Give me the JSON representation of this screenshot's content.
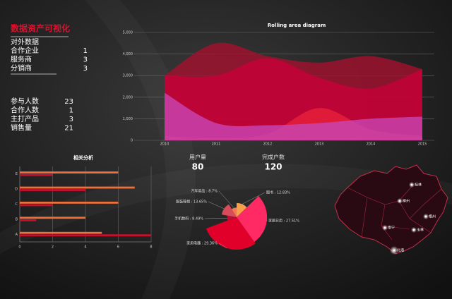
{
  "header": {
    "title": "数据资产可视化",
    "subtitle": "对外数据"
  },
  "stats_partners": [
    {
      "label": "合作企业",
      "value": 1
    },
    {
      "label": "服务商",
      "value": 3
    },
    {
      "label": "分销商",
      "value": 3
    }
  ],
  "stats_people": [
    {
      "label": "参与人数",
      "value": 23
    },
    {
      "label": "合作人数",
      "value": 1
    },
    {
      "label": "主打产品",
      "value": 3
    },
    {
      "label": "销售量",
      "value": 21
    }
  ],
  "kpis": [
    {
      "label": "用户量",
      "value": 80
    },
    {
      "label": "完成户数",
      "value": 120
    }
  ],
  "chart_data": [
    {
      "type": "area",
      "title": "Rolling area diagram",
      "x": [
        2010,
        2011,
        2012,
        2013,
        2014,
        2015
      ],
      "xlim": [
        2010,
        2015
      ],
      "xticks": [
        2010,
        2011,
        2012,
        2013,
        2014,
        2015
      ],
      "ylim": [
        0,
        5000
      ],
      "yticks": [
        0,
        {
          "value": 1000,
          "label": "1,000"
        },
        {
          "value": 2000,
          "label": "2,000"
        },
        {
          "value": 3000,
          "label": "3,000"
        },
        {
          "value": 4000,
          "label": "4,000"
        },
        {
          "value": 5000,
          "label": "5,000"
        }
      ],
      "grid": true,
      "series": [
        {
          "color": "#a3102e",
          "values": [
            3000,
            4500,
            3900,
            3600,
            3900,
            3300
          ]
        },
        {
          "color": "#c8003a",
          "values": [
            3000,
            3000,
            3800,
            2900,
            2400,
            3300
          ]
        },
        {
          "color": "#e8203a",
          "values": [
            200,
            100,
            300,
            1500,
            500,
            200
          ]
        },
        {
          "color": "#c846b4",
          "values": [
            2200,
            800,
            700,
            800,
            1000,
            1100
          ]
        }
      ]
    },
    {
      "type": "hbar",
      "title": "相关分析",
      "categories": [
        "A",
        "B",
        "C",
        "D",
        "E"
      ],
      "xlim": [
        0,
        8
      ],
      "xticks": [
        0,
        2,
        4,
        6,
        8
      ],
      "grid": true,
      "series": [
        {
          "color": "#f0703c",
          "values": [
            5,
            4,
            6,
            7,
            6
          ]
        },
        {
          "color": "#c8102e",
          "values": [
            8,
            1,
            2,
            4,
            2
          ]
        }
      ]
    },
    {
      "type": "pie",
      "rose": true,
      "values": [
        12.83,
        27.51,
        29.36,
        8.49,
        13.65,
        8.7
      ],
      "value_labels": [
        "图书 : 12.83%",
        "家居日用 : 27.51%",
        "家用电器 : 29.36%",
        "手机数码 : 8.49%",
        "服装鞋帽 : 13.65%",
        "汽车用品 : 8.7%"
      ],
      "colors": [
        "#f5a04a",
        "#ff2a64",
        "#e0002a",
        "#b81030",
        "#d94a5a",
        "#f07a50"
      ]
    }
  ],
  "map": {
    "cities": [
      "桂林",
      "柳州",
      "梧州",
      "南宁",
      "玉林",
      "北海"
    ]
  }
}
